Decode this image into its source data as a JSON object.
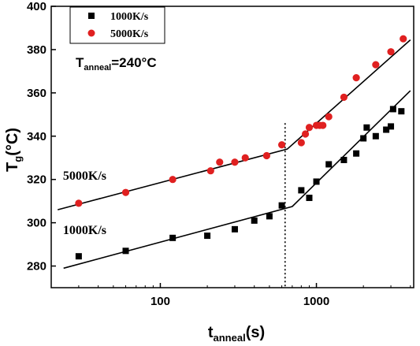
{
  "chart_data": {
    "type": "scatter",
    "x_scale": "log",
    "xlim": [
      20,
      4200
    ],
    "ylim": [
      270,
      400
    ],
    "x_ticks": [
      100,
      1000
    ],
    "x_tick_labels": [
      "100",
      "1000"
    ],
    "y_ticks": [
      280,
      300,
      320,
      340,
      360,
      380,
      400
    ],
    "y_tick_labels": [
      "280",
      "300",
      "320",
      "340",
      "360",
      "380",
      "400"
    ],
    "xlabel": {
      "main": "t",
      "sub": "anneal",
      "rest": "(s)"
    },
    "ylabel": {
      "main": "T",
      "sub": "g",
      "rest": "(°C)"
    },
    "legend_position": "top-left",
    "grid": false,
    "series": [
      {
        "name": "1000K/s",
        "marker": "square",
        "color": "#000000",
        "points": [
          [
            30,
            284.5
          ],
          [
            60,
            287
          ],
          [
            120,
            293
          ],
          [
            200,
            294
          ],
          [
            300,
            297
          ],
          [
            400,
            301
          ],
          [
            500,
            303
          ],
          [
            600,
            308
          ],
          [
            800,
            315
          ],
          [
            900,
            311.5
          ],
          [
            1000,
            319
          ],
          [
            1200,
            327
          ],
          [
            1500,
            329
          ],
          [
            1800,
            332
          ],
          [
            2000,
            339
          ],
          [
            2100,
            344
          ],
          [
            2400,
            340
          ],
          [
            2800,
            343
          ],
          [
            3000,
            344.5
          ],
          [
            3100,
            352.5
          ],
          [
            3500,
            351.5
          ]
        ]
      },
      {
        "name": "5000K/s",
        "marker": "circle",
        "color": "#e02020",
        "points": [
          [
            30,
            309
          ],
          [
            60,
            314
          ],
          [
            120,
            320
          ],
          [
            210,
            324
          ],
          [
            240,
            328
          ],
          [
            300,
            328
          ],
          [
            350,
            330
          ],
          [
            480,
            331
          ],
          [
            600,
            336
          ],
          [
            800,
            337
          ],
          [
            850,
            341
          ],
          [
            900,
            344
          ],
          [
            1000,
            345
          ],
          [
            1050,
            345
          ],
          [
            1100,
            345
          ],
          [
            1200,
            349
          ],
          [
            1500,
            358
          ],
          [
            1800,
            367
          ],
          [
            2400,
            373
          ],
          [
            3000,
            379
          ],
          [
            3600,
            385
          ]
        ]
      }
    ],
    "fit_lines": [
      {
        "series": "1000K/s",
        "points": [
          [
            24,
            279
          ],
          [
            700,
            307.5
          ],
          [
            4000,
            361
          ]
        ]
      },
      {
        "series": "5000K/s",
        "points": [
          [
            22,
            306
          ],
          [
            650,
            334
          ],
          [
            4000,
            384.5
          ]
        ]
      }
    ],
    "vline": {
      "x": 630,
      "style": "dotted"
    },
    "annotations": [
      {
        "text": "5000K/s",
        "at": [
          30,
          322
        ]
      },
      {
        "text": "1000K/s",
        "at": [
          30,
          297
        ]
      }
    ],
    "condition_label": {
      "main": "T",
      "sub": "anneal",
      "rest": "=240°C"
    }
  }
}
